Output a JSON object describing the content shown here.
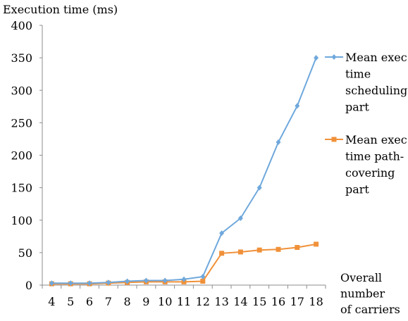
{
  "chart_data": {
    "type": "line",
    "ylabel": "Execution time (ms)",
    "xlabel_lines": [
      "Overall",
      "number",
      "of carriers"
    ],
    "x": [
      4,
      5,
      6,
      7,
      8,
      9,
      10,
      11,
      12,
      13,
      14,
      15,
      16,
      17,
      18
    ],
    "ylim": [
      0,
      400
    ],
    "yticks": [
      0,
      50,
      100,
      150,
      200,
      250,
      300,
      350,
      400
    ],
    "grid": false,
    "legend_position": "right",
    "series": [
      {
        "name": "Mean exec. time scheduling part",
        "legend_lines": [
          "Mean exec.",
          "time",
          "scheduling",
          "part"
        ],
        "color": "#6fa8dc",
        "marker": "diamond",
        "values": [
          3,
          3,
          3,
          4,
          6,
          7,
          7,
          9,
          13,
          80,
          103,
          150,
          220,
          276,
          350
        ]
      },
      {
        "name": "Mean exec. time path-covering part",
        "legend_lines": [
          "Mean exec.",
          "time path-",
          "covering",
          "part"
        ],
        "color": "#f0913a",
        "marker": "square",
        "values": [
          2,
          2,
          2,
          3,
          4,
          5,
          5,
          5,
          6,
          49,
          51,
          54,
          55,
          58,
          63
        ]
      }
    ]
  }
}
